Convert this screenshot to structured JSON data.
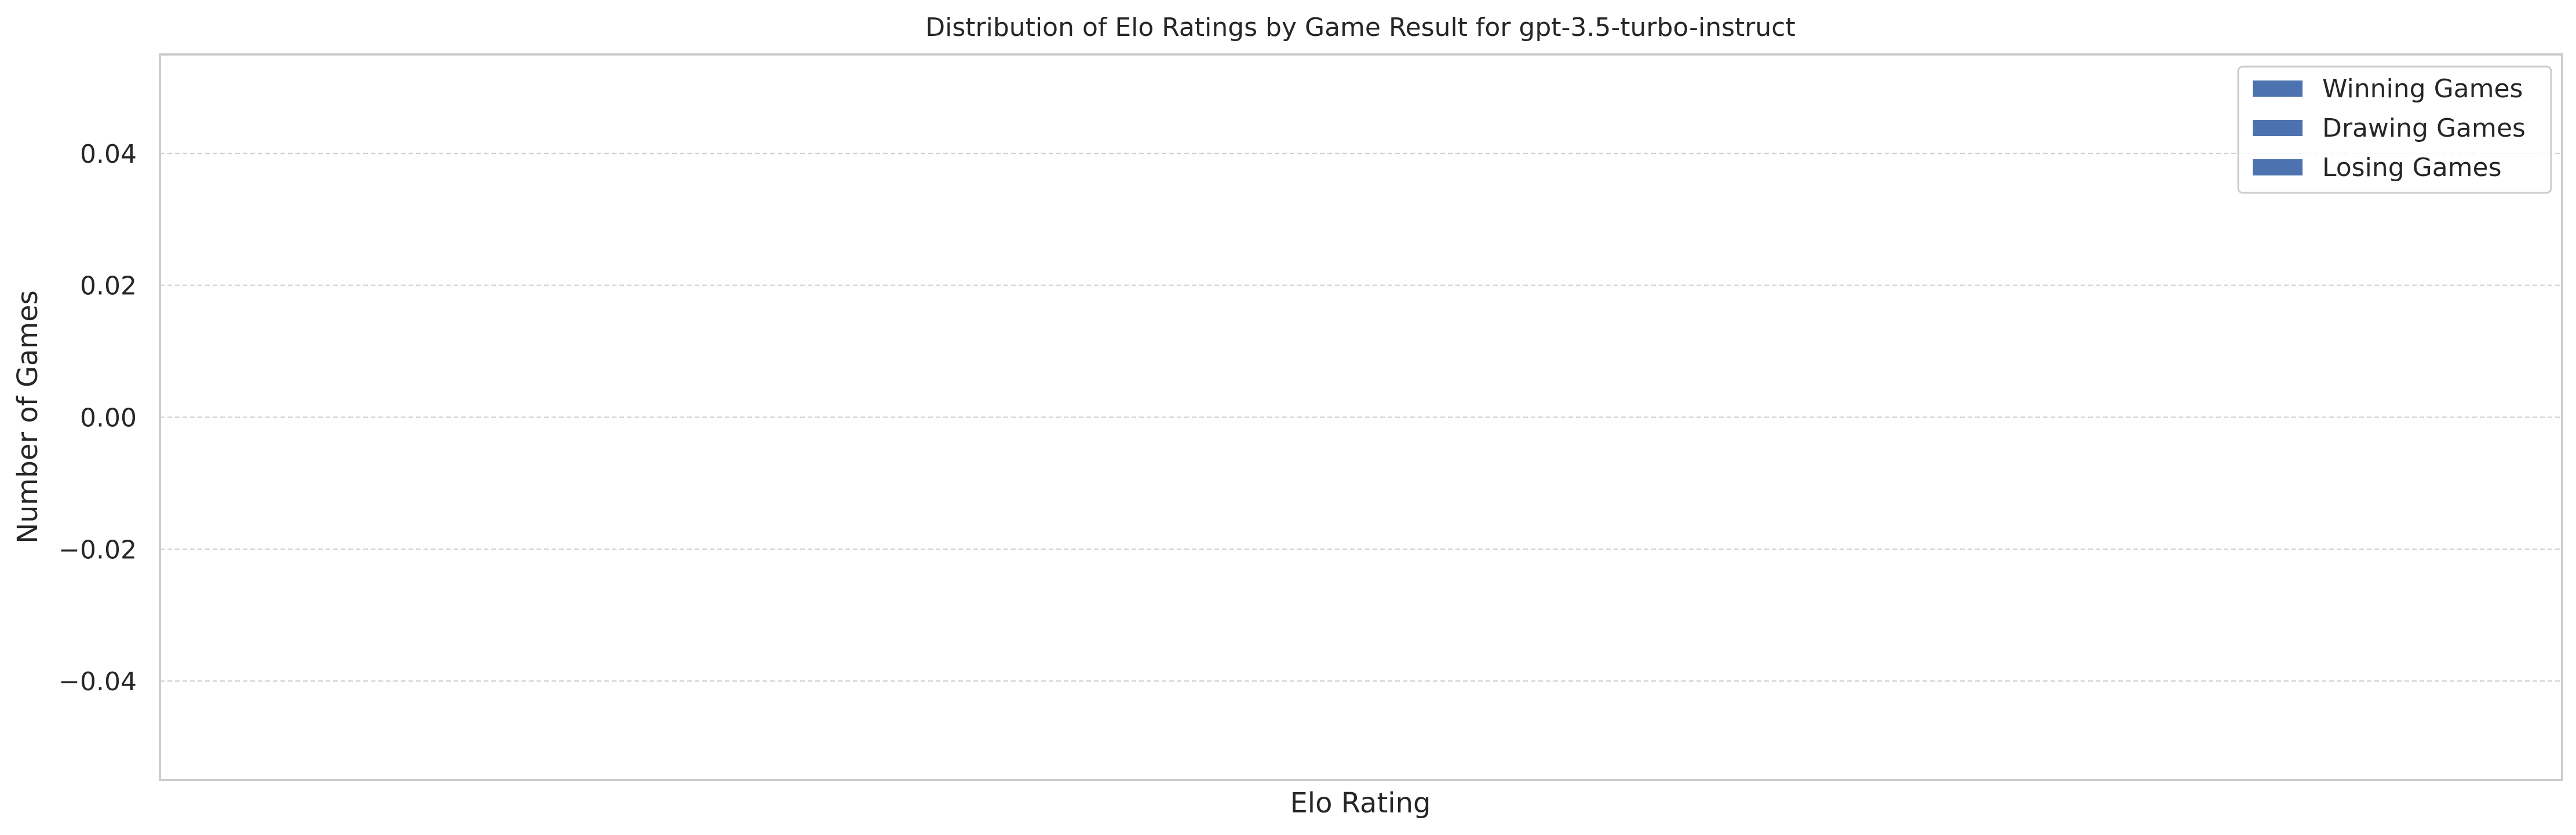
{
  "chart_data": {
    "type": "bar",
    "title": "Distribution of Elo Ratings by Game Result for gpt-3.5-turbo-instruct",
    "xlabel": "Elo Rating",
    "ylabel": "Number of Games",
    "ylim": [
      -0.055,
      0.055
    ],
    "yticks": [
      0.04,
      0.02,
      0.0,
      -0.02,
      -0.04
    ],
    "ytick_labels": [
      "0.04",
      "0.02",
      "0.00",
      "−0.02",
      "−0.04"
    ],
    "x": [],
    "series": [
      {
        "name": "Winning Games",
        "values": []
      },
      {
        "name": "Drawing Games",
        "values": []
      },
      {
        "name": "Losing Games",
        "values": []
      }
    ],
    "grid": "y",
    "legend_position": "top-right",
    "colors": {
      "series": "#4c72b0",
      "grid": "#cccccc",
      "frame": "#cccccc",
      "text": "#262626"
    }
  }
}
